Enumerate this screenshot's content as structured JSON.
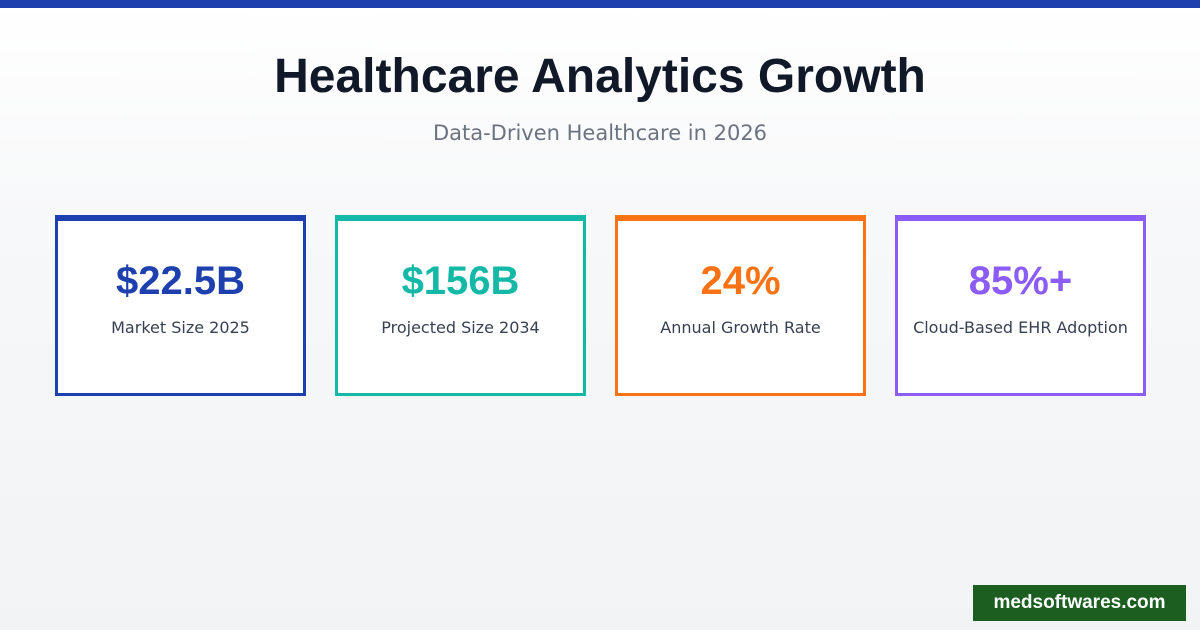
{
  "header": {
    "title": "Healthcare Analytics Growth",
    "subtitle": "Data-Driven Healthcare in 2026"
  },
  "stats": [
    {
      "value": "$22.5B",
      "label": "Market Size 2025",
      "color": "#1e40af"
    },
    {
      "value": "$156B",
      "label": "Projected Size 2034",
      "color": "#14b8a6"
    },
    {
      "value": "24%",
      "label": "Annual Growth Rate",
      "color": "#f97316"
    },
    {
      "value": "85%+",
      "label": "Cloud-Based EHR Adoption",
      "color": "#8b5cf6"
    }
  ],
  "footer": {
    "site": "medsoftwares.com",
    "background": "#1b5e20"
  },
  "theme": {
    "accent_bar": "#1e40af",
    "title_color": "#111827",
    "subtitle_color": "#6b7280"
  }
}
